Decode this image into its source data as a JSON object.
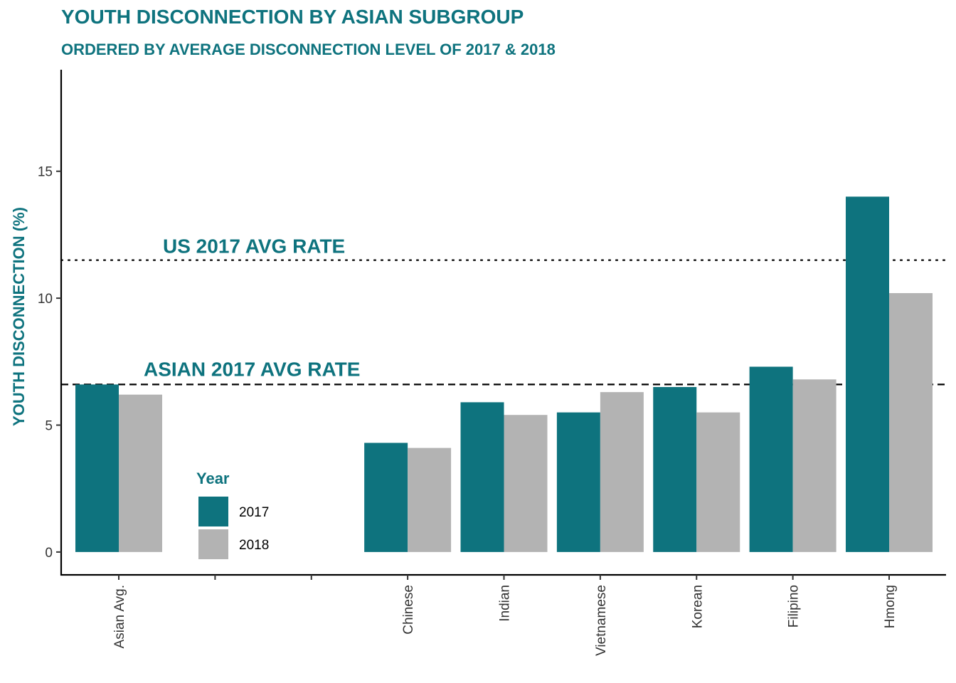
{
  "title": "YOUTH DISCONNECTION BY ASIAN SUBGROUP",
  "subtitle": "ORDERED BY AVERAGE DISCONNECTION LEVEL OF 2017 & 2018",
  "colors": {
    "accent": "#0e737e",
    "series_2017": "#0e737e",
    "series_2018": "#b3b3b3"
  },
  "chart_data": {
    "type": "bar",
    "title": "YOUTH DISCONNECTION BY ASIAN SUBGROUP",
    "subtitle": "ORDERED BY AVERAGE DISCONNECTION LEVEL OF 2017 & 2018",
    "xlabel": "",
    "ylabel": "YOUTH DISCONNECTION (%)",
    "categories": [
      "Asian Avg.",
      "",
      "",
      "Chinese",
      "Indian",
      "Vietnamese",
      "Korean",
      "Filipino",
      "Hmong"
    ],
    "series": [
      {
        "name": "2017",
        "values": [
          6.6,
          null,
          null,
          4.3,
          5.9,
          5.5,
          6.5,
          7.3,
          14.0
        ]
      },
      {
        "name": "2018",
        "values": [
          6.2,
          null,
          null,
          4.1,
          5.4,
          6.3,
          5.5,
          6.8,
          10.2
        ]
      }
    ],
    "ylim": [
      -0.9,
      19.0
    ],
    "yticks": [
      0,
      5,
      10,
      15
    ],
    "reference_lines": [
      {
        "label": "US 2017 AVG RATE",
        "value": 11.5,
        "style": "dotted"
      },
      {
        "label": "ASIAN 2017 AVG RATE",
        "value": 6.6,
        "style": "dashed"
      }
    ],
    "legend": {
      "title": "Year",
      "entries": [
        "2017",
        "2018"
      ],
      "placement": "inside-bottom-left"
    },
    "grid": false
  }
}
